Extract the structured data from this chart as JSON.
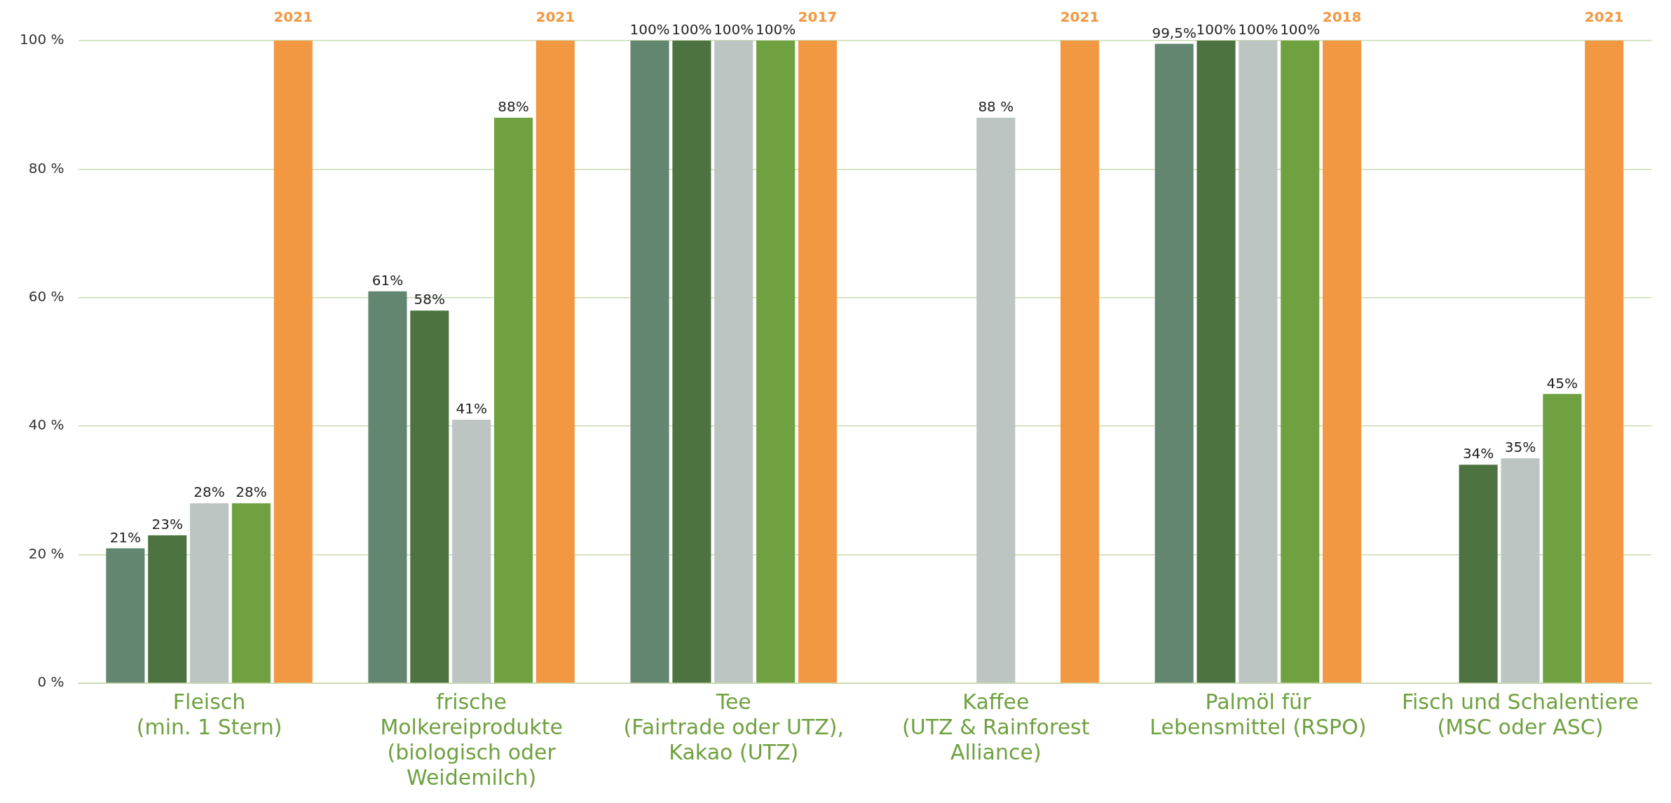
{
  "chart_data": {
    "type": "bar",
    "categories": [
      "Fleisch\n(min. 1 Stern)",
      "frische\nMolkereiprodukte\n(biologisch oder\nWeidemilch)",
      "Tee\n(Fairtrade oder UTZ),\nKakao (UTZ)",
      "Kaffee\n(UTZ & Rainforest\nAlliance)",
      "Palmöl für\nLebensmittel (RSPO)",
      "Fisch und Schalentiere\n(MSC oder ASC)"
    ],
    "series": [
      {
        "color": "#62866f",
        "values": [
          21,
          61,
          100,
          null,
          99.5,
          null
        ],
        "value_labels": [
          "21%",
          "61%",
          "100%",
          null,
          "99,5%",
          null
        ]
      },
      {
        "color": "#4d7340",
        "values": [
          23,
          58,
          100,
          null,
          100,
          34
        ],
        "value_labels": [
          "23%",
          "58%",
          "100%",
          null,
          "100%",
          "34%"
        ]
      },
      {
        "color": "#bcc5c2",
        "values": [
          28,
          41,
          100,
          88,
          100,
          35
        ],
        "value_labels": [
          "28%",
          "41%",
          "100%",
          "88 %",
          "100%",
          "35%"
        ]
      },
      {
        "color": "#6fa140",
        "values": [
          28,
          88,
          100,
          null,
          100,
          45
        ],
        "value_labels": [
          "28%",
          "88%",
          "100%",
          null,
          "100%",
          "45%"
        ]
      },
      {
        "color": "#f39842",
        "values": [
          100,
          100,
          100,
          100,
          100,
          100
        ]
      }
    ],
    "annotations": [
      "2021",
      "2021",
      "2017",
      "2021",
      "2018",
      "2021"
    ],
    "ylim": [
      0,
      100
    ],
    "yticks": [
      {
        "value": 0,
        "label": "0 %"
      },
      {
        "value": 20,
        "label": "20 %"
      },
      {
        "value": 40,
        "label": "40 %"
      },
      {
        "value": 60,
        "label": "60 %"
      },
      {
        "value": 80,
        "label": "80 %"
      },
      {
        "value": 100,
        "label": "100 %"
      }
    ],
    "grid": "y",
    "legend": false
  }
}
